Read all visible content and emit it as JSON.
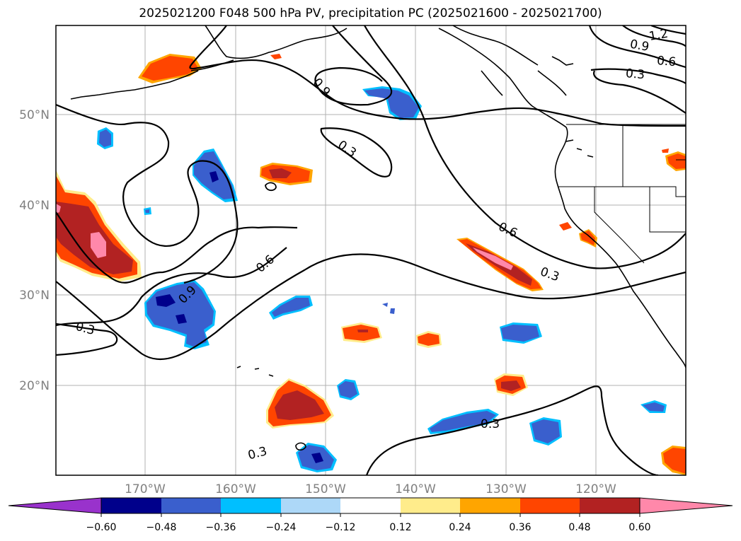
{
  "title": "2025021200 F048 500 hPa PV, precipitation PC (2025021600 - 2025021700)",
  "map": {
    "lat_labels": [
      "50°N",
      "40°N",
      "30°N",
      "20°N"
    ],
    "lon_labels": [
      "170°W",
      "160°W",
      "150°W",
      "140°W",
      "130°W",
      "120°W"
    ],
    "contour_labels": [
      "1.2",
      "0.9",
      "0.6",
      "0.3",
      "0.9",
      "0.3",
      "0.6",
      "0.6",
      "0.3",
      "0.9",
      "0.3",
      "0.3",
      "0.3"
    ],
    "colors": {
      "coast": "#000000",
      "grid": "#b0b0b0",
      "axis_label": "#808080"
    }
  },
  "colorbar": {
    "ticks": [
      "−0.60",
      "−0.48",
      "−0.36",
      "−0.24",
      "−0.12",
      "0.12",
      "0.24",
      "0.36",
      "0.48",
      "0.60"
    ],
    "colors": [
      "#9932cc",
      "#00008b",
      "#3a5fcd",
      "#00bfff",
      "#add8f8",
      "#ffffff",
      "#ffec8b",
      "#ffa500",
      "#ff4500",
      "#b22222",
      "#ff88aa"
    ]
  }
}
